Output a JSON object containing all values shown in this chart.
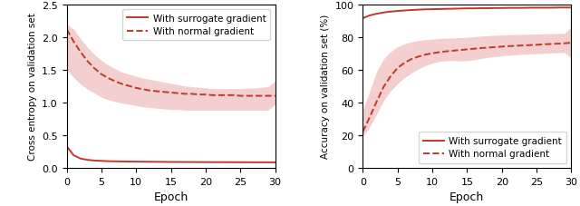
{
  "left": {
    "xlabel": "Epoch",
    "ylabel": "Cross entropy on validation set",
    "xlim": [
      0,
      30
    ],
    "ylim": [
      0.0,
      2.5
    ],
    "yticks": [
      0.0,
      0.5,
      1.0,
      1.5,
      2.0,
      2.5
    ],
    "solid_mean": [
      0.33,
      0.19,
      0.14,
      0.12,
      0.11,
      0.105,
      0.1,
      0.098,
      0.096,
      0.094,
      0.093,
      0.092,
      0.091,
      0.09,
      0.089,
      0.088,
      0.088,
      0.087,
      0.087,
      0.086,
      0.086,
      0.085,
      0.085,
      0.085,
      0.084,
      0.084,
      0.084,
      0.083,
      0.083,
      0.083,
      0.082
    ],
    "dashed_mean": [
      2.12,
      1.93,
      1.77,
      1.63,
      1.52,
      1.43,
      1.37,
      1.32,
      1.28,
      1.25,
      1.22,
      1.2,
      1.18,
      1.17,
      1.16,
      1.15,
      1.14,
      1.13,
      1.13,
      1.12,
      1.12,
      1.11,
      1.11,
      1.11,
      1.11,
      1.1,
      1.1,
      1.1,
      1.1,
      1.1,
      1.1
    ],
    "dashed_lo": [
      1.5,
      1.38,
      1.28,
      1.2,
      1.14,
      1.08,
      1.04,
      1.01,
      0.99,
      0.97,
      0.95,
      0.93,
      0.92,
      0.91,
      0.9,
      0.89,
      0.89,
      0.88,
      0.88,
      0.88,
      0.88,
      0.88,
      0.88,
      0.88,
      0.88,
      0.88,
      0.88,
      0.88,
      0.88,
      0.88,
      0.97
    ],
    "dashed_hi": [
      2.2,
      2.12,
      1.97,
      1.84,
      1.73,
      1.64,
      1.57,
      1.51,
      1.46,
      1.43,
      1.4,
      1.37,
      1.35,
      1.33,
      1.31,
      1.29,
      1.27,
      1.25,
      1.24,
      1.23,
      1.22,
      1.21,
      1.21,
      1.21,
      1.21,
      1.21,
      1.22,
      1.22,
      1.23,
      1.24,
      1.33
    ],
    "legend_loc": "upper right"
  },
  "right": {
    "xlabel": "Epoch",
    "ylabel": "Accuracy on validation set (%)",
    "xlim": [
      0,
      30
    ],
    "ylim": [
      0,
      100
    ],
    "yticks": [
      0,
      20,
      40,
      60,
      80,
      100
    ],
    "solid_mean": [
      91.5,
      93.2,
      94.2,
      95.0,
      95.5,
      95.9,
      96.2,
      96.5,
      96.7,
      96.9,
      97.0,
      97.1,
      97.2,
      97.3,
      97.4,
      97.5,
      97.5,
      97.6,
      97.6,
      97.7,
      97.7,
      97.8,
      97.8,
      97.8,
      97.9,
      97.9,
      97.9,
      97.9,
      98.0,
      98.0,
      98.0
    ],
    "dashed_mean": [
      22.0,
      31.0,
      40.5,
      49.5,
      56.0,
      61.0,
      64.2,
      66.5,
      68.0,
      69.2,
      70.0,
      70.7,
      71.2,
      71.6,
      72.0,
      72.4,
      72.8,
      73.2,
      73.5,
      73.8,
      74.1,
      74.4,
      74.6,
      74.8,
      75.0,
      75.2,
      75.5,
      75.7,
      75.9,
      76.1,
      76.5
    ],
    "dashed_lo": [
      19.0,
      25.0,
      33.0,
      41.0,
      47.0,
      51.5,
      55.0,
      58.0,
      60.5,
      62.5,
      64.0,
      65.0,
      65.5,
      65.5,
      65.3,
      65.5,
      66.0,
      66.8,
      67.5,
      68.0,
      68.5,
      68.8,
      69.1,
      69.4,
      69.6,
      69.8,
      70.0,
      70.2,
      70.4,
      70.6,
      67.0
    ],
    "dashed_hi": [
      35.0,
      47.0,
      59.0,
      66.5,
      71.0,
      74.0,
      75.8,
      77.0,
      77.8,
      78.3,
      78.7,
      79.0,
      79.2,
      79.4,
      79.6,
      79.8,
      80.2,
      80.5,
      80.8,
      81.0,
      81.2,
      81.4,
      81.5,
      81.6,
      81.7,
      81.8,
      81.9,
      82.0,
      82.1,
      82.2,
      86.0
    ],
    "legend_loc": "lower right"
  },
  "line_color": "#c0392b",
  "fill_color": "#e8a0a0",
  "fill_alpha": 0.5
}
